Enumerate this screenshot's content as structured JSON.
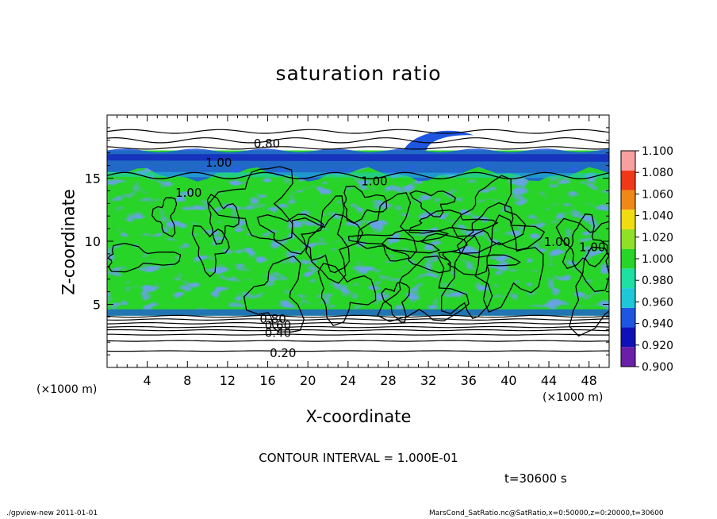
{
  "footer": {
    "left": "./gpview-new   2011-01-01",
    "right": "MarsCond_SatRatio.nc@SatRatio,x=0:50000,z=0:20000,t=30600"
  },
  "chart_data": {
    "type": "heatmap",
    "title": "saturation ratio",
    "xlabel": "X-coordinate",
    "ylabel": "Z-coordinate",
    "x_unit_label": "(×1000 m)",
    "y_unit_label": "(×1000 m)",
    "xlim": [
      0,
      50
    ],
    "ylim": [
      0,
      20
    ],
    "x_ticks": [
      4,
      8,
      12,
      16,
      20,
      24,
      28,
      32,
      36,
      40,
      44,
      48
    ],
    "y_ticks": [
      5,
      10,
      15
    ],
    "colorbar": {
      "levels": [
        0.9,
        0.92,
        0.94,
        0.96,
        0.98,
        1.0,
        1.02,
        1.04,
        1.06,
        1.08,
        1.1
      ],
      "labels": [
        "0.900",
        "0.920",
        "0.940",
        "0.960",
        "0.980",
        "1.000",
        "1.020",
        "1.040",
        "1.060",
        "1.080",
        "1.100"
      ],
      "colors": [
        "#6a1fa8",
        "#1010b8",
        "#1e56e0",
        "#1ec8d8",
        "#1ee0a0",
        "#28d428",
        "#90e028",
        "#f0dc10",
        "#f08818",
        "#f03818",
        "#f8a0a0"
      ]
    },
    "contour_labels": [
      {
        "text": "0.80",
        "x": 14.6,
        "z": 17.8
      },
      {
        "text": "1.00",
        "x": 9.8,
        "z": 16.3
      },
      {
        "text": "1.00",
        "x": 6.8,
        "z": 13.9
      },
      {
        "text": "1.00",
        "x": 25.3,
        "z": 14.8
      },
      {
        "text": "1.00",
        "x": 43.5,
        "z": 10.0
      },
      {
        "text": "1.00",
        "x": 47.0,
        "z": 9.6
      },
      {
        "text": "0.80",
        "x": 15.2,
        "z": 3.9
      },
      {
        "text": "0.60",
        "x": 15.7,
        "z": 3.4
      },
      {
        "text": "0.40",
        "x": 15.7,
        "z": 2.8
      },
      {
        "text": "0.20",
        "x": 16.2,
        "z": 1.2
      }
    ],
    "contour_interval": "CONTOUR INTERVAL = 1.000E-01",
    "time": "t=30600 s"
  }
}
